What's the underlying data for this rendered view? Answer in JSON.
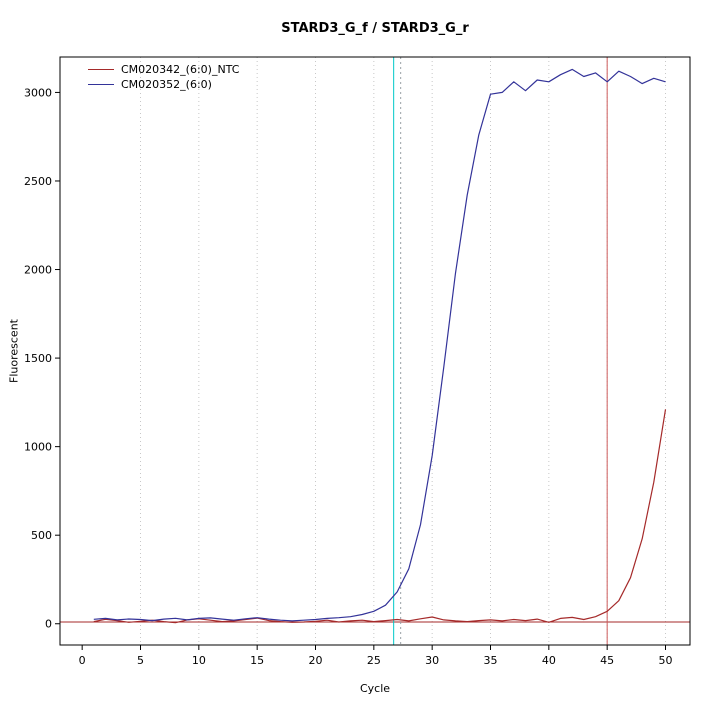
{
  "chart_data": {
    "type": "line",
    "title": "STARD3_G_f / STARD3_G_r",
    "xlabel": "Cycle",
    "ylabel": "Fluorescent",
    "xlim": [
      -1.9,
      52.1
    ],
    "ylim": [
      -120,
      3200
    ],
    "x_ticks": [
      0,
      5,
      10,
      15,
      20,
      25,
      30,
      35,
      40,
      45,
      50
    ],
    "y_ticks": [
      0,
      500,
      1000,
      1500,
      2000,
      2500,
      3000
    ],
    "grid_x": [
      5,
      10,
      15,
      20,
      25,
      30,
      35,
      40,
      45,
      50
    ],
    "grid": "vertical-dotted",
    "legend_position": "top-left",
    "colors": {
      "grid": "#c8c8c8",
      "axis": "#000000",
      "background": "#ffffff"
    },
    "x": [
      1,
      2,
      3,
      4,
      5,
      6,
      7,
      8,
      9,
      10,
      11,
      12,
      13,
      14,
      15,
      16,
      17,
      18,
      19,
      20,
      21,
      22,
      23,
      24,
      25,
      26,
      27,
      28,
      29,
      30,
      31,
      32,
      33,
      34,
      35,
      36,
      37,
      38,
      39,
      40,
      41,
      42,
      43,
      44,
      45,
      46,
      47,
      48,
      49,
      50
    ],
    "series": [
      {
        "name": "CM020342_(6:0)_NTC",
        "color": "#a52a2a",
        "values": [
          12,
          25,
          18,
          8,
          14,
          20,
          12,
          6,
          22,
          28,
          20,
          12,
          16,
          24,
          32,
          18,
          12,
          8,
          10,
          14,
          20,
          10,
          16,
          20,
          12,
          18,
          24,
          16,
          28,
          38,
          22,
          16,
          12,
          18,
          22,
          16,
          24,
          18,
          26,
          8,
          30,
          36,
          24,
          40,
          70,
          130,
          260,
          480,
          800,
          1210
        ]
      },
      {
        "name": "CM020352_(6:0)",
        "color": "#333399",
        "values": [
          25,
          30,
          22,
          27,
          24,
          18,
          26,
          31,
          22,
          30,
          33,
          26,
          20,
          28,
          34,
          26,
          20,
          16,
          20,
          24,
          30,
          34,
          40,
          52,
          70,
          105,
          180,
          310,
          560,
          950,
          1450,
          1980,
          2420,
          2760,
          2990,
          3000,
          3060,
          3010,
          3070,
          3060,
          3100,
          3130,
          3090,
          3110,
          3060,
          3120,
          3090,
          3050,
          3080,
          3060
        ]
      }
    ],
    "threshold_line": {
      "y": 10,
      "color": "#a52a2a"
    },
    "vlines": [
      {
        "x": 26.7,
        "color": "#00c8c8",
        "style": "solid",
        "name": "ct-marker-cyan-line"
      },
      {
        "x": 27.3,
        "color": "#9aa0a6",
        "style": "dotted",
        "name": "takeoff-marker-dotted-line"
      },
      {
        "x": 45.0,
        "color": "#cd5c5c",
        "style": "solid",
        "name": "ct-marker-red-line"
      }
    ]
  }
}
